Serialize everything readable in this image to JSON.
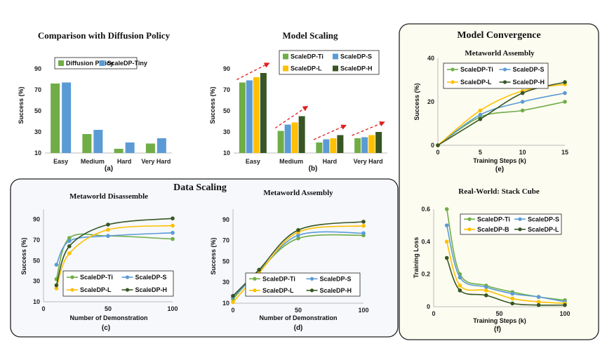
{
  "colors": {
    "green": "#70AD47",
    "blue": "#5B9BD5",
    "gold": "#FFC000",
    "darkgreen": "#375623",
    "arrow": "#E02020",
    "panel_bg": "#F6F8FC",
    "convergence_bg": "#FDFCF1"
  },
  "panels": {
    "data_scaling_title": "Data Scaling",
    "model_convergence_title": "Model Convergence"
  },
  "chart_data": [
    {
      "id": "a",
      "type": "bar",
      "title": "Comparison with Diffusion Policy",
      "caption": "(a)",
      "ylabel": "Success (%)",
      "xlabel": "",
      "ylim": [
        10,
        100
      ],
      "yticks": [
        10,
        30,
        50,
        70,
        90
      ],
      "legend_position": "top",
      "categories": [
        "Easy",
        "Medium",
        "Hard",
        "Very Hard"
      ],
      "series": [
        {
          "name": "Diffusion Policy",
          "color": "#70AD47",
          "values": [
            76,
            28,
            14,
            19
          ]
        },
        {
          "name": "ScaleDP-Tiny",
          "color": "#5B9BD5",
          "values": [
            77,
            32,
            20,
            24
          ]
        }
      ]
    },
    {
      "id": "b",
      "type": "bar",
      "title": "Model Scaling",
      "caption": "(b)",
      "ylabel": "Success (%)",
      "xlabel": "",
      "ylim": [
        10,
        100
      ],
      "yticks": [
        10,
        30,
        50,
        70,
        90
      ],
      "legend_position": "top",
      "categories": [
        "Easy",
        "Medium",
        "Hard",
        "Very Hard"
      ],
      "series": [
        {
          "name": "ScaleDP-Ti",
          "color": "#70AD47",
          "values": [
            77,
            31,
            20,
            24
          ]
        },
        {
          "name": "ScaleDP-S",
          "color": "#5B9BD5",
          "values": [
            79,
            37,
            23,
            25
          ]
        },
        {
          "name": "ScaleDP-L",
          "color": "#FFC000",
          "values": [
            82,
            39,
            24,
            27
          ]
        },
        {
          "name": "ScaleDP-H",
          "color": "#375623",
          "values": [
            86,
            45,
            27,
            30
          ]
        }
      ]
    },
    {
      "id": "c",
      "type": "line",
      "title": "Metaworld Disassemble",
      "caption": "(c)",
      "ylabel": "Success (%)",
      "xlabel": "Number of Demonstration",
      "xlim": [
        0,
        100
      ],
      "xticks": [
        0,
        50,
        100
      ],
      "ylim": [
        10,
        100
      ],
      "yticks": [
        10,
        30,
        50,
        70,
        90
      ],
      "legend_position": "bottom",
      "x": [
        10,
        20,
        50,
        100
      ],
      "series": [
        {
          "name": "ScaleDP-Ti",
          "color": "#70AD47",
          "values": [
            32,
            72,
            74,
            71
          ]
        },
        {
          "name": "ScaleDP-S",
          "color": "#5B9BD5",
          "values": [
            46,
            69,
            74,
            77
          ]
        },
        {
          "name": "ScaleDP-L",
          "color": "#FFC000",
          "values": [
            23,
            57,
            80,
            84
          ]
        },
        {
          "name": "ScaleDP-H",
          "color": "#375623",
          "values": [
            26,
            64,
            85,
            91
          ]
        }
      ]
    },
    {
      "id": "d",
      "type": "line",
      "title": "Metaworld Assembly",
      "caption": "(d)",
      "ylabel": "Success (%)",
      "xlabel": "Number of Demonstration",
      "xlim": [
        0,
        100
      ],
      "xticks": [
        0,
        50,
        100
      ],
      "ylim": [
        10,
        100
      ],
      "yticks": [
        10,
        30,
        50,
        70,
        90
      ],
      "legend_position": "bottom",
      "x": [
        0,
        20,
        50,
        100
      ],
      "series": [
        {
          "name": "ScaleDP-Ti",
          "color": "#70AD47",
          "values": [
            14,
            41,
            72,
            75
          ]
        },
        {
          "name": "ScaleDP-S",
          "color": "#5B9BD5",
          "values": [
            16,
            40,
            75,
            77
          ]
        },
        {
          "name": "ScaleDP-L",
          "color": "#FFC000",
          "values": [
            11,
            39,
            78,
            84
          ]
        },
        {
          "name": "ScaleDP-H",
          "color": "#375623",
          "values": [
            17,
            42,
            80,
            88
          ]
        }
      ]
    },
    {
      "id": "e",
      "type": "line",
      "title": "Metaworld Assembly",
      "caption": "(e)",
      "ylabel": "Success (%)",
      "xlabel": "Training Steps (k)",
      "xlim": [
        0,
        15
      ],
      "xticks": [
        0,
        5,
        10,
        15
      ],
      "ylim": [
        0,
        40
      ],
      "yticks": [
        0,
        20,
        40
      ],
      "legend_position": "top-left",
      "x": [
        0,
        5,
        10,
        15
      ],
      "series": [
        {
          "name": "ScaleDP-Ti",
          "color": "#70AD47",
          "values": [
            0,
            13,
            16,
            20
          ]
        },
        {
          "name": "ScaleDP-S",
          "color": "#5B9BD5",
          "values": [
            0,
            14,
            20,
            24
          ]
        },
        {
          "name": "ScaleDP-L",
          "color": "#FFC000",
          "values": [
            0,
            16,
            25,
            28
          ]
        },
        {
          "name": "ScaleDP-H",
          "color": "#375623",
          "values": [
            0,
            12,
            24,
            29
          ]
        }
      ]
    },
    {
      "id": "f",
      "type": "line",
      "title": "Real-World: Stack Cube",
      "caption": "(f)",
      "ylabel": "Training Loss",
      "xlabel": "Training Steps (k)",
      "xlim": [
        0,
        100
      ],
      "xticks": [
        0,
        50,
        100
      ],
      "ylim": [
        0,
        0.6
      ],
      "yticks": [
        0,
        0.2,
        0.4,
        0.6
      ],
      "legend_position": "top-right",
      "x": [
        10,
        20,
        40,
        60,
        80,
        100
      ],
      "series": [
        {
          "name": "ScaleDP-Ti",
          "color": "#70AD47",
          "values": [
            0.6,
            0.2,
            0.13,
            0.09,
            0.06,
            0.04
          ]
        },
        {
          "name": "ScaleDP-S",
          "color": "#5B9BD5",
          "values": [
            0.5,
            0.18,
            0.12,
            0.08,
            0.06,
            0.03
          ]
        },
        {
          "name": "ScaleDP-B",
          "color": "#FFC000",
          "values": [
            0.4,
            0.13,
            0.1,
            0.05,
            0.03,
            0.02
          ]
        },
        {
          "name": "ScaleDP-L",
          "color": "#375623",
          "values": [
            0.3,
            0.1,
            0.07,
            0.02,
            0.01,
            0.01
          ]
        }
      ]
    }
  ]
}
